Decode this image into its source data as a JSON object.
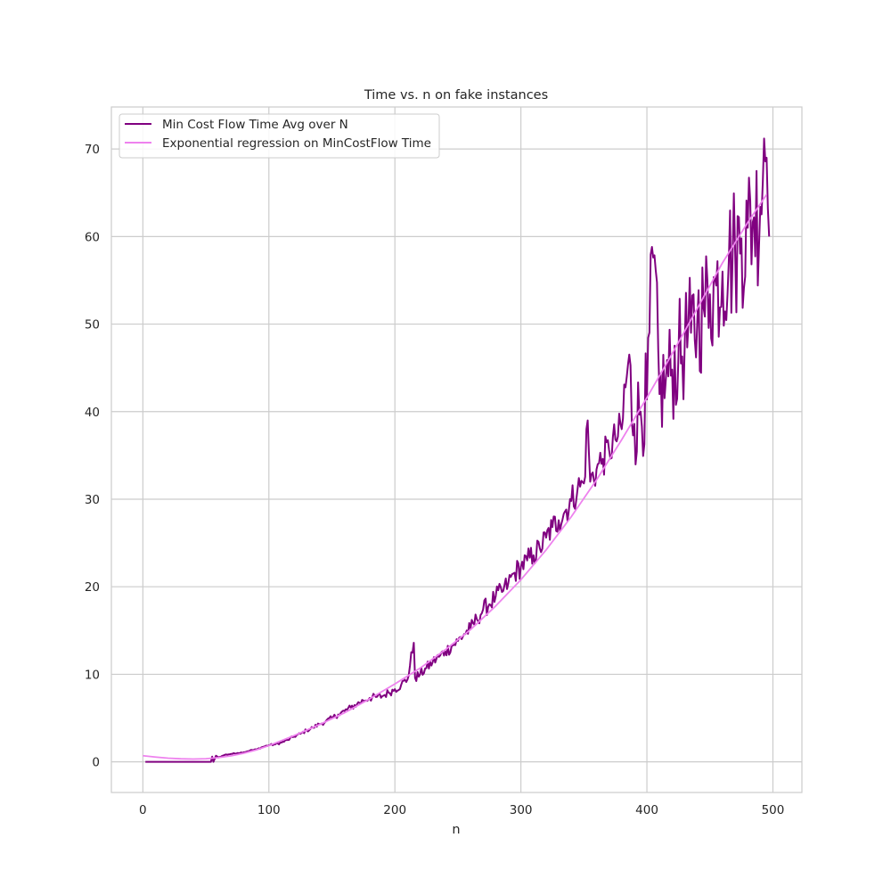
{
  "chart_data": {
    "type": "line",
    "title": "Time vs. n on fake instances",
    "xlabel": "n",
    "ylabel": "",
    "xlim": [
      -25,
      523
    ],
    "ylim": [
      -3.5,
      74.8
    ],
    "xticks": [
      0,
      100,
      200,
      300,
      400,
      500
    ],
    "yticks": [
      0,
      10,
      20,
      30,
      40,
      50,
      60,
      70
    ],
    "grid": true,
    "legend_position": "top-left",
    "series": [
      {
        "name": "Min Cost Flow Time Avg over N",
        "color": "#800080",
        "style": "noisy-measurement",
        "points": [
          [
            2,
            0
          ],
          [
            10,
            0
          ],
          [
            20,
            0
          ],
          [
            30,
            0
          ],
          [
            40,
            0
          ],
          [
            50,
            0
          ],
          [
            54,
            0
          ],
          [
            55,
            0.6
          ],
          [
            56,
            0
          ],
          [
            58,
            0.7
          ],
          [
            60,
            0.5
          ],
          [
            65,
            0.8
          ],
          [
            70,
            0.9
          ],
          [
            75,
            1.0
          ],
          [
            80,
            1.1
          ],
          [
            85,
            1.3
          ],
          [
            90,
            1.4
          ],
          [
            95,
            1.7
          ],
          [
            100,
            1.9
          ],
          [
            105,
            2.0
          ],
          [
            110,
            2.2
          ],
          [
            115,
            2.5
          ],
          [
            120,
            2.9
          ],
          [
            125,
            3.2
          ],
          [
            130,
            3.6
          ],
          [
            135,
            3.9
          ],
          [
            140,
            4.3
          ],
          [
            145,
            4.6
          ],
          [
            150,
            5.0
          ],
          [
            155,
            5.4
          ],
          [
            160,
            5.8
          ],
          [
            165,
            6.2
          ],
          [
            170,
            6.6
          ],
          [
            175,
            7.0
          ],
          [
            180,
            7.3
          ],
          [
            185,
            7.4
          ],
          [
            190,
            7.5
          ],
          [
            195,
            7.9
          ],
          [
            200,
            8.3
          ],
          [
            205,
            8.8
          ],
          [
            210,
            9.4
          ],
          [
            215,
            13.6
          ],
          [
            216,
            9.6
          ],
          [
            220,
            10.0
          ],
          [
            225,
            10.7
          ],
          [
            230,
            11.4
          ],
          [
            235,
            12.0
          ],
          [
            240,
            12.6
          ],
          [
            245,
            13.2
          ],
          [
            250,
            13.8
          ],
          [
            255,
            14.6
          ],
          [
            260,
            15.2
          ],
          [
            265,
            16.3
          ],
          [
            270,
            17.4
          ],
          [
            275,
            18.0
          ],
          [
            280,
            18.9
          ],
          [
            285,
            19.4
          ],
          [
            290,
            20.4
          ],
          [
            295,
            21.6
          ],
          [
            300,
            22.3
          ],
          [
            305,
            23.0
          ],
          [
            310,
            23.6
          ],
          [
            315,
            24.4
          ],
          [
            320,
            25.6
          ],
          [
            325,
            26.8
          ],
          [
            330,
            27.6
          ],
          [
            335,
            28.6
          ],
          [
            340,
            29.8
          ],
          [
            345,
            31.2
          ],
          [
            350,
            31.8
          ],
          [
            353,
            39.0
          ],
          [
            355,
            32.0
          ],
          [
            360,
            33.4
          ],
          [
            365,
            34.6
          ],
          [
            370,
            35.6
          ],
          [
            375,
            36.8
          ],
          [
            380,
            38.0
          ],
          [
            385,
            45.4
          ],
          [
            390,
            38.6
          ],
          [
            395,
            40.0
          ],
          [
            400,
            41.4
          ],
          [
            405,
            57.6
          ],
          [
            410,
            42.0
          ],
          [
            415,
            43.6
          ],
          [
            420,
            44.8
          ],
          [
            425,
            46.2
          ],
          [
            430,
            47.6
          ],
          [
            435,
            49.0
          ],
          [
            440,
            50.4
          ],
          [
            445,
            51.8
          ],
          [
            450,
            53.4
          ],
          [
            455,
            54.4
          ],
          [
            460,
            56.0
          ],
          [
            465,
            57.2
          ],
          [
            470,
            58.4
          ],
          [
            475,
            59.8
          ],
          [
            480,
            61.0
          ],
          [
            485,
            62.2
          ],
          [
            490,
            63.4
          ],
          [
            493,
            71.2
          ],
          [
            495,
            69.0
          ],
          [
            497,
            60.0
          ]
        ]
      },
      {
        "name": "Exponential regression on MinCostFlow Time",
        "color": "#ee82ee",
        "style": "smooth-fit",
        "points": [
          [
            0,
            0.7
          ],
          [
            10,
            0.55
          ],
          [
            20,
            0.42
          ],
          [
            30,
            0.35
          ],
          [
            40,
            0.32
          ],
          [
            50,
            0.36
          ],
          [
            60,
            0.48
          ],
          [
            70,
            0.69
          ],
          [
            80,
            0.98
          ],
          [
            90,
            1.36
          ],
          [
            100,
            1.85
          ],
          [
            120,
            3.0
          ],
          [
            140,
            4.25
          ],
          [
            160,
            5.6
          ],
          [
            180,
            7.2
          ],
          [
            200,
            8.9
          ],
          [
            220,
            10.7
          ],
          [
            240,
            12.8
          ],
          [
            260,
            15.1
          ],
          [
            280,
            17.8
          ],
          [
            300,
            20.8
          ],
          [
            320,
            24.2
          ],
          [
            340,
            28.0
          ],
          [
            360,
            32.2
          ],
          [
            380,
            36.8
          ],
          [
            400,
            41.6
          ],
          [
            420,
            46.6
          ],
          [
            440,
            51.8
          ],
          [
            460,
            57.0
          ],
          [
            480,
            61.6
          ],
          [
            495,
            64.8
          ]
        ]
      }
    ]
  }
}
